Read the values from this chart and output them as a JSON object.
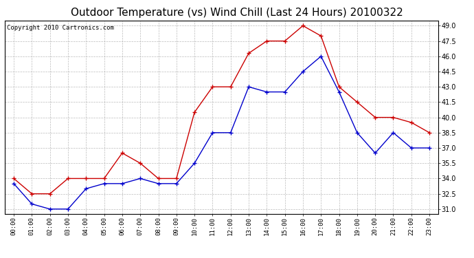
{
  "title": "Outdoor Temperature (vs) Wind Chill (Last 24 Hours) 20100322",
  "copyright": "Copyright 2010 Cartronics.com",
  "hours": [
    "00:00",
    "01:00",
    "02:00",
    "03:00",
    "04:00",
    "05:00",
    "06:00",
    "07:00",
    "08:00",
    "09:00",
    "10:00",
    "11:00",
    "12:00",
    "13:00",
    "14:00",
    "15:00",
    "16:00",
    "17:00",
    "18:00",
    "19:00",
    "20:00",
    "21:00",
    "22:00",
    "23:00"
  ],
  "temp": [
    34.0,
    32.5,
    32.5,
    34.0,
    34.0,
    34.0,
    36.5,
    35.5,
    34.0,
    34.0,
    40.5,
    43.0,
    43.0,
    46.3,
    47.5,
    47.5,
    49.0,
    48.0,
    43.0,
    41.5,
    40.0,
    40.0,
    39.5,
    38.5
  ],
  "windchill": [
    33.5,
    31.5,
    31.0,
    31.0,
    33.0,
    33.5,
    33.5,
    34.0,
    33.5,
    33.5,
    35.5,
    38.5,
    38.5,
    43.0,
    42.5,
    42.5,
    44.5,
    46.0,
    42.5,
    38.5,
    36.5,
    38.5,
    37.0,
    37.0
  ],
  "temp_color": "#cc0000",
  "windchill_color": "#0000cc",
  "ylim": [
    30.5,
    49.5
  ],
  "yticks": [
    31.0,
    32.5,
    34.0,
    35.5,
    37.0,
    38.5,
    40.0,
    41.5,
    43.0,
    44.5,
    46.0,
    47.5,
    49.0
  ],
  "bg_color": "#ffffff",
  "grid_color": "#aaaaaa",
  "title_fontsize": 11,
  "copyright_fontsize": 6.5
}
